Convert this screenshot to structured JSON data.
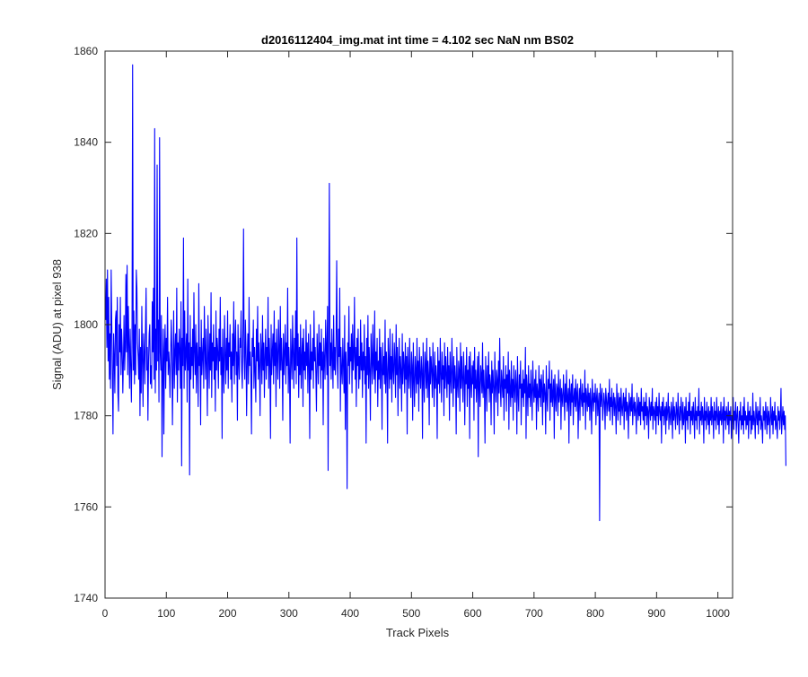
{
  "chart_data": {
    "type": "line",
    "title": "d2016112404_img.mat int time = 4.102 sec  NaN nm BS02",
    "xlabel": "Track Pixels",
    "ylabel": "Signal (ADU) at pixel 938",
    "xlim": [
      0,
      1024
    ],
    "ylim": [
      1740,
      1860
    ],
    "xticks": [
      0,
      100,
      200,
      300,
      400,
      500,
      600,
      700,
      800,
      900,
      1000
    ],
    "yticks": [
      1740,
      1760,
      1780,
      1800,
      1820,
      1840,
      1860
    ],
    "grid": false,
    "series": [
      {
        "color": "#0000ff",
        "x_start": 1,
        "x_step": 1,
        "values": [
          1801,
          1810,
          1795,
          1812,
          1792,
          1806,
          1788,
          1798,
          1786,
          1812,
          1800,
          1789,
          1776,
          1798,
          1793,
          1785,
          1801,
          1803,
          1791,
          1806,
          1785,
          1781,
          1800,
          1794,
          1806,
          1789,
          1799,
          1795,
          1785,
          1792,
          1802,
          1790,
          1795,
          1811,
          1794,
          1813,
          1789,
          1804,
          1796,
          1786,
          1799,
          1791,
          1783,
          1797,
          1857,
          1790,
          1803,
          1787,
          1800,
          1789,
          1812,
          1808,
          1796,
          1793,
          1788,
          1799,
          1780,
          1795,
          1785,
          1804,
          1792,
          1782,
          1798,
          1794,
          1787,
          1799,
          1808,
          1790,
          1795,
          1779,
          1792,
          1798,
          1800,
          1787,
          1791,
          1786,
          1805,
          1794,
          1808,
          1788,
          1843,
          1785,
          1799,
          1790,
          1835,
          1792,
          1801,
          1783,
          1841,
          1794,
          1790,
          1802,
          1771,
          1790,
          1799,
          1776,
          1794,
          1800,
          1786,
          1797,
          1792,
          1806,
          1789,
          1794,
          1791,
          1784,
          1793,
          1801,
          1795,
          1778,
          1790,
          1803,
          1786,
          1794,
          1798,
          1789,
          1808,
          1783,
          1796,
          1790,
          1799,
          1794,
          1786,
          1805,
          1769,
          1797,
          1791,
          1819,
          1786,
          1803,
          1790,
          1794,
          1798,
          1783,
          1810,
          1790,
          1796,
          1767,
          1802,
          1788,
          1795,
          1791,
          1799,
          1786,
          1807,
          1794,
          1789,
          1800,
          1785,
          1796,
          1792,
          1782,
          1809,
          1791,
          1795,
          1778,
          1801,
          1789,
          1793,
          1797,
          1786,
          1804,
          1795,
          1788,
          1799,
          1791,
          1780,
          1802,
          1794,
          1786,
          1798,
          1790,
          1807,
          1784,
          1796,
          1792,
          1800,
          1788,
          1795,
          1781,
          1803,
          1790,
          1797,
          1794,
          1786,
          1799,
          1792,
          1806,
          1789,
          1795,
          1775,
          1799,
          1791,
          1785,
          1802,
          1794,
          1787,
          1797,
          1790,
          1803,
          1786,
          1796,
          1793,
          1800,
          1788,
          1794,
          1783,
          1798,
          1791,
          1805,
          1787,
          1796,
          1801,
          1789,
          1794,
          1779,
          1800,
          1792,
          1788,
          1797,
          1795,
          1803,
          1790,
          1786,
          1799,
          1821,
          1793,
          1788,
          1801,
          1795,
          1780,
          1792,
          1798,
          1787,
          1806,
          1791,
          1794,
          1789,
          1776,
          1797,
          1793,
          1801,
          1786,
          1795,
          1790,
          1783,
          1799,
          1792,
          1804,
          1788,
          1796,
          1791,
          1780,
          1798,
          1794,
          1787,
          1802,
          1790,
          1796,
          1784,
          1793,
          1799,
          1788,
          1795,
          1791,
          1806,
          1786,
          1797,
          1792,
          1775,
          1800,
          1789,
          1794,
          1798,
          1787,
          1803,
          1791,
          1796,
          1782,
          1799,
          1793,
          1788,
          1801,
          1795,
          1786,
          1804,
          1790,
          1797,
          1792,
          1779,
          1798,
          1789,
          1794,
          1800,
          1787,
          1796,
          1791,
          1808,
          1785,
          1795,
          1790,
          1774,
          1799,
          1793,
          1788,
          1802,
          1794,
          1786,
          1797,
          1790,
          1803,
          1787,
          1819,
          1791,
          1798,
          1784,
          1795,
          1789,
          1800,
          1786,
          1793,
          1797,
          1782,
          1799,
          1790,
          1794,
          1788,
          1801,
          1791,
          1796,
          1785,
          1798,
          1792,
          1775,
          1800,
          1788,
          1794,
          1790,
          1797,
          1786,
          1803,
          1792,
          1795,
          1789,
          1781,
          1798,
          1793,
          1787,
          1800,
          1791,
          1796,
          1786,
          1799,
          1790,
          1794,
          1778,
          1797,
          1792,
          1788,
          1801,
          1795,
          1789,
          1804,
          1768,
          1800,
          1831,
          1791,
          1796,
          1788,
          1799,
          1793,
          1786,
          1802,
          1790,
          1795,
          1789,
          1797,
          1814,
          1792,
          1786,
          1799,
          1793,
          1808,
          1781,
          1795,
          1790,
          1787,
          1797,
          1791,
          1785,
          1802,
          1777,
          1794,
          1790,
          1764,
          1796,
          1791,
          1804,
          1787,
          1795,
          1792,
          1798,
          1785,
          1800,
          1790,
          1793,
          1806,
          1788,
          1795,
          1782,
          1797,
          1791,
          1799,
          1786,
          1793,
          1788,
          1801,
          1790,
          1796,
          1784,
          1794,
          1790,
          1800,
          1787,
          1793,
          1774,
          1797,
          1789,
          1802,
          1786,
          1795,
          1790,
          1779,
          1798,
          1793,
          1787,
          1800,
          1791,
          1788,
          1803,
          1785,
          1794,
          1790,
          1797,
          1782,
          1792,
          1788,
          1799,
          1786,
          1795,
          1791,
          1777,
          1796,
          1789,
          1793,
          1787,
          1801,
          1785,
          1794,
          1790,
          1774,
          1797,
          1792,
          1786,
          1799,
          1788,
          1793,
          1783,
          1798,
          1790,
          1787,
          1796,
          1792,
          1784,
          1800,
          1789,
          1795,
          1780,
          1791,
          1797,
          1786,
          1793,
          1790,
          1781,
          1798,
          1787,
          1794,
          1791,
          1785,
          1796,
          1788,
          1793,
          1776,
          1795,
          1790,
          1786,
          1797,
          1789,
          1784,
          1794,
          1791,
          1779,
          1796,
          1788,
          1782,
          1793,
          1790,
          1785,
          1797,
          1787,
          1792,
          1781,
          1795,
          1789,
          1786,
          1793,
          1790,
          1775,
          1796,
          1788,
          1783,
          1794,
          1791,
          1786,
          1797,
          1784,
          1792,
          1789,
          1778,
          1795,
          1787,
          1793,
          1790,
          1784,
          1796,
          1789,
          1782,
          1794,
          1786,
          1791,
          1788,
          1775,
          1795,
          1787,
          1792,
          1785,
          1797,
          1789,
          1783,
          1794,
          1788,
          1791,
          1780,
          1796,
          1786,
          1793,
          1789,
          1784,
          1795,
          1787,
          1791,
          1779,
          1794,
          1788,
          1785,
          1797,
          1790,
          1782,
          1793,
          1786,
          1791,
          1788,
          1776,
          1795,
          1787,
          1784,
          1792,
          1790,
          1781,
          1796,
          1786,
          1793,
          1788,
          1783,
          1794,
          1789,
          1778,
          1791,
          1787,
          1795,
          1782,
          1790,
          1786,
          1793,
          1775,
          1794,
          1788,
          1784,
          1791,
          1787,
          1792,
          1779,
          1795,
          1786,
          1790,
          1783,
          1788,
          1793,
          1771,
          1794,
          1787,
          1782,
          1791,
          1789,
          1785,
          1796,
          1784,
          1790,
          1786,
          1774,
          1793,
          1788,
          1781,
          1791,
          1786,
          1794,
          1783,
          1789,
          1787,
          1778,
          1792,
          1785,
          1790,
          1786,
          1776,
          1794,
          1787,
          1783,
          1790,
          1788,
          1780,
          1792,
          1785,
          1797,
          1786,
          1782,
          1790,
          1787,
          1784,
          1793,
          1779,
          1788,
          1786,
          1791,
          1781,
          1789,
          1785,
          1794,
          1777,
          1790,
          1786,
          1782,
          1792,
          1784,
          1788,
          1779,
          1791,
          1786,
          1783,
          1790,
          1787,
          1776,
          1793,
          1785,
          1781,
          1789,
          1786,
          1792,
          1778,
          1787,
          1784,
          1790,
          1782,
          1788,
          1785,
          1795,
          1775,
          1789,
          1786,
          1780,
          1791,
          1784,
          1787,
          1782,
          1790,
          1785,
          1779,
          1792,
          1786,
          1783,
          1788,
          1784,
          1790,
          1777,
          1787,
          1785,
          1781,
          1791,
          1784,
          1788,
          1782,
          1789,
          1786,
          1778,
          1790,
          1783,
          1787,
          1785,
          1776,
          1791,
          1784,
          1781,
          1788,
          1786,
          1792,
          1779,
          1787,
          1783,
          1790,
          1782,
          1785,
          1788,
          1775,
          1789,
          1784,
          1781,
          1787,
          1786,
          1780,
          1790,
          1783,
          1785,
          1788,
          1777,
          1786,
          1784,
          1782,
          1789,
          1785,
          1779,
          1787,
          1783,
          1790,
          1781,
          1784,
          1786,
          1774,
          1788,
          1785,
          1780,
          1787,
          1783,
          1789,
          1778,
          1784,
          1786,
          1782,
          1788,
          1781,
          1785,
          1787,
          1775,
          1783,
          1786,
          1779,
          1788,
          1784,
          1782,
          1787,
          1780,
          1785,
          1783,
          1790,
          1777,
          1786,
          1784,
          1781,
          1787,
          1782,
          1785,
          1779,
          1786,
          1783,
          1776,
          1788,
          1784,
          1781,
          1785,
          1783,
          1787,
          1778,
          1784,
          1786,
          1780,
          1783,
          1785,
          1757,
          1787,
          1782,
          1784,
          1786,
          1779,
          1782,
          1785,
          1783,
          1777,
          1786,
          1784,
          1780,
          1783,
          1785,
          1781,
          1788,
          1779,
          1784,
          1782,
          1786,
          1778,
          1783,
          1785,
          1780,
          1784,
          1782,
          1776,
          1787,
          1783,
          1779,
          1785,
          1781,
          1784,
          1778,
          1786,
          1782,
          1780,
          1783,
          1785,
          1777,
          1784,
          1781,
          1786,
          1779,
          1783,
          1782,
          1775,
          1785,
          1783,
          1780,
          1784,
          1781,
          1787,
          1778,
          1782,
          1784,
          1780,
          1783,
          1781,
          1776,
          1785,
          1782,
          1779,
          1784,
          1780,
          1783,
          1778,
          1786,
          1781,
          1782,
          1779,
          1784,
          1777,
          1783,
          1780,
          1785,
          1778,
          1782,
          1781,
          1775,
          1784,
          1782,
          1779,
          1783,
          1780,
          1786,
          1777,
          1782,
          1781,
          1779,
          1783,
          1776,
          1784,
          1780,
          1782,
          1778,
          1785,
          1781,
          1779,
          1782,
          1774,
          1783,
          1780,
          1784,
          1778,
          1781,
          1782,
          1776,
          1783,
          1779,
          1781,
          1785,
          1777,
          1782,
          1780,
          1778,
          1783,
          1781,
          1775,
          1784,
          1779,
          1782,
          1780,
          1777,
          1783,
          1781,
          1778,
          1785,
          1780,
          1776,
          1782,
          1779,
          1784,
          1781,
          1777,
          1783,
          1778,
          1780,
          1782,
          1774,
          1784,
          1779,
          1781,
          1777,
          1783,
          1780,
          1785,
          1776,
          1781,
          1779,
          1782,
          1778,
          1783,
          1780,
          1775,
          1784,
          1779,
          1781,
          1777,
          1782,
          1780,
          1786,
          1776,
          1781,
          1779,
          1783,
          1778,
          1782,
          1780,
          1774,
          1784,
          1779,
          1781,
          1777,
          1783,
          1780,
          1778,
          1782,
          1776,
          1781,
          1779,
          1784,
          1778,
          1782,
          1780,
          1775,
          1783,
          1779,
          1781,
          1777,
          1784,
          1780,
          1778,
          1782,
          1776,
          1781,
          1779,
          1783,
          1778,
          1780,
          1782,
          1774,
          1784,
          1779,
          1781,
          1777,
          1782,
          1780,
          1778,
          1783,
          1776,
          1781,
          1779,
          1782,
          1775,
          1780,
          1778,
          1784,
          1777,
          1781,
          1779,
          1783,
          1776,
          1780,
          1782,
          1778,
          1774,
          1781,
          1779,
          1783,
          1777,
          1780,
          1778,
          1782,
          1776,
          1784,
          1779,
          1781,
          1777,
          1780,
          1778,
          1783,
          1775,
          1781,
          1779,
          1782,
          1776,
          1780,
          1777,
          1785,
          1778,
          1781,
          1779,
          1775,
          1783,
          1780,
          1778,
          1782,
          1776,
          1781,
          1779,
          1784,
          1777,
          1780,
          1778,
          1774,
          1782,
          1779,
          1781,
          1777,
          1783,
          1780,
          1776,
          1782,
          1778,
          1781,
          1779,
          1775,
          1784,
          1780,
          1778,
          1782,
          1776,
          1781,
          1779,
          1783,
          1777,
          1780,
          1778,
          1775,
          1782,
          1779,
          1781,
          1777,
          1780,
          1786,
          1776,
          1779,
          1782,
          1778,
          1781,
          1777,
          1780,
          1769
        ]
      }
    ]
  }
}
